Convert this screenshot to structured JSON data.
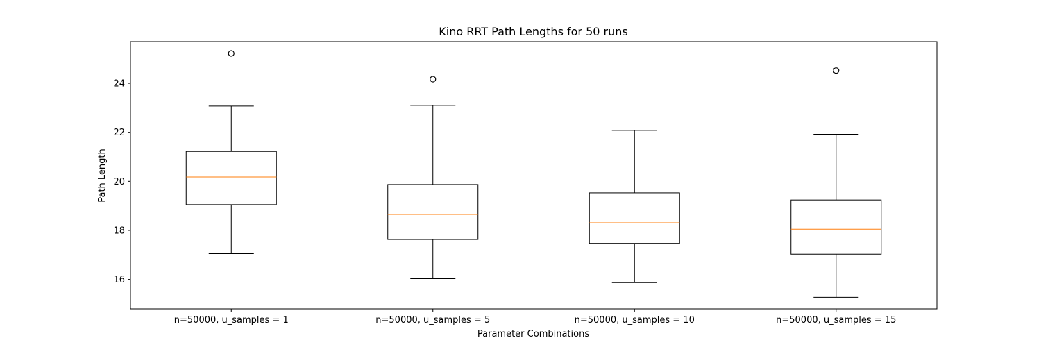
{
  "chart_data": {
    "type": "box",
    "title": "Kino RRT Path Lengths for 50 runs",
    "xlabel": "Parameter Combinations",
    "ylabel": "Path Length",
    "ylim": [
      14.8,
      25.7
    ],
    "yticks": [
      16,
      18,
      20,
      22,
      24
    ],
    "grid": false,
    "categories": [
      "n=50000, u_samples = 1",
      "n=50000, u_samples = 5",
      "n=50000, u_samples = 10",
      "n=50000, u_samples = 15"
    ],
    "boxes": [
      {
        "whisker_low": 17.05,
        "q1": 19.05,
        "median": 20.18,
        "q3": 21.22,
        "whisker_high": 23.07,
        "outliers": [
          25.22
        ]
      },
      {
        "whisker_low": 16.03,
        "q1": 17.63,
        "median": 18.65,
        "q3": 19.87,
        "whisker_high": 23.1,
        "outliers": [
          24.17
        ]
      },
      {
        "whisker_low": 15.87,
        "q1": 17.47,
        "median": 18.31,
        "q3": 19.53,
        "whisker_high": 22.08,
        "outliers": []
      },
      {
        "whisker_low": 15.27,
        "q1": 17.03,
        "median": 18.05,
        "q3": 19.24,
        "whisker_high": 21.92,
        "outliers": [
          24.52
        ]
      }
    ],
    "colors": {
      "box": "#000000",
      "median": "#ff7f0e",
      "background": "#ffffff"
    }
  }
}
